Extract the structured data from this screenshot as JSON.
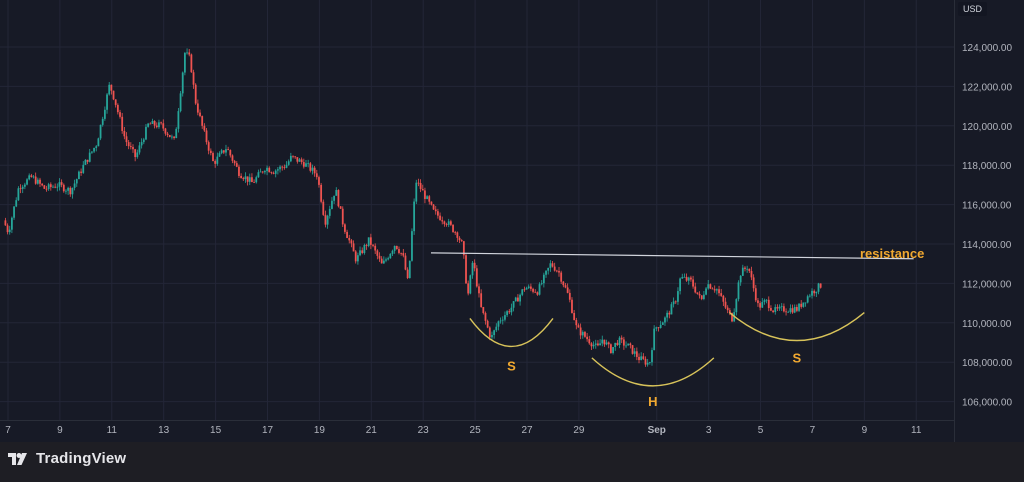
{
  "currency": "USD",
  "brand": {
    "name": "TradingView",
    "icon": "tradingview-logo-icon"
  },
  "colors": {
    "background": "#171a26",
    "grid": "#232637",
    "axis_text": "#b2b5be",
    "up": "#26a69a",
    "down": "#ef5350",
    "resistance": "#d1d4dc",
    "annotation": "#f0a830",
    "curve": "#d8c35a"
  },
  "chart_data": {
    "type": "candlestick",
    "currency": "USD",
    "x_ticks": [
      "7",
      "9",
      "11",
      "13",
      "15",
      "17",
      "19",
      "21",
      "23",
      "25",
      "27",
      "29",
      "Sep",
      "3",
      "5",
      "7",
      "9",
      "11"
    ],
    "y_ticks": [
      106000,
      108000,
      110000,
      112000,
      114000,
      116000,
      118000,
      120000,
      122000,
      124000
    ],
    "y_tick_labels": [
      "106,000.00",
      "108,000.00",
      "110,000.00",
      "112,000.00",
      "114,000.00",
      "116,000.00",
      "118,000.00",
      "120,000.00",
      "122,000.00",
      "124,000.00"
    ],
    "ylim": [
      105200,
      125400
    ],
    "price_path_days": [
      6.9,
      7.1,
      7.5,
      8.0,
      8.5,
      9.0,
      9.5,
      10.0,
      10.5,
      11.0,
      11.2,
      11.6,
      12.0,
      12.5,
      13.0,
      13.5,
      13.9,
      14.1,
      14.3,
      14.6,
      15.0,
      15.5,
      16.0,
      16.5,
      17.0,
      17.3,
      17.8,
      18.0,
      18.5,
      19.0,
      19.3,
      19.7,
      20.0,
      20.5,
      21.0,
      21.5,
      22.0,
      22.3,
      22.5,
      22.8,
      23.0,
      23.5,
      24.0,
      24.4,
      24.6,
      24.8,
      25.0,
      25.3,
      25.7,
      26.0,
      26.5,
      27.0,
      27.5,
      28.0,
      28.3,
      28.7,
      29.0,
      29.4,
      29.8,
      30.0,
      30.3,
      30.6,
      31.0,
      31.4,
      31.8,
      32.0,
      32.4,
      32.8,
      33.0,
      33.4,
      33.8,
      34.0,
      34.4,
      34.8,
      35.0,
      35.3,
      35.6,
      36.0,
      36.3,
      36.6,
      37.0,
      37.5,
      38.0,
      38.4
    ],
    "price_path": [
      115200,
      114600,
      116900,
      117400,
      116800,
      117000,
      116700,
      118000,
      119100,
      122100,
      121300,
      119300,
      118400,
      120100,
      120000,
      119200,
      123700,
      123400,
      121300,
      119800,
      118100,
      118900,
      117600,
      117100,
      117900,
      117700,
      118000,
      118400,
      118100,
      117500,
      115100,
      116800,
      115000,
      113200,
      114200,
      112900,
      114000,
      113400,
      112000,
      117200,
      116800,
      115600,
      115100,
      114500,
      113900,
      111300,
      113200,
      110800,
      109200,
      110100,
      110800,
      111800,
      111600,
      113000,
      112600,
      111300,
      109700,
      109200,
      108700,
      109200,
      108600,
      109100,
      108800,
      108200,
      107900,
      109700,
      110200,
      111100,
      112300,
      112100,
      111100,
      112000,
      111700,
      110600,
      110200,
      112500,
      112900,
      110800,
      111100,
      110600,
      110700,
      110700,
      111500,
      111900
    ],
    "annotations": {
      "resistance_label": "resistance",
      "resistance_line": {
        "from": [
          23.3,
          113550
        ],
        "to": [
          41.9,
          113250
        ]
      },
      "shoulder_left": {
        "label": "S",
        "range": [
          24.8,
          28.0
        ],
        "low": 108800
      },
      "head": {
        "label": "H",
        "range": [
          29.5,
          34.2
        ],
        "low": 106800
      },
      "shoulder_right": {
        "label": "S",
        "range": [
          34.8,
          40.0
        ],
        "low": 109100
      }
    }
  }
}
